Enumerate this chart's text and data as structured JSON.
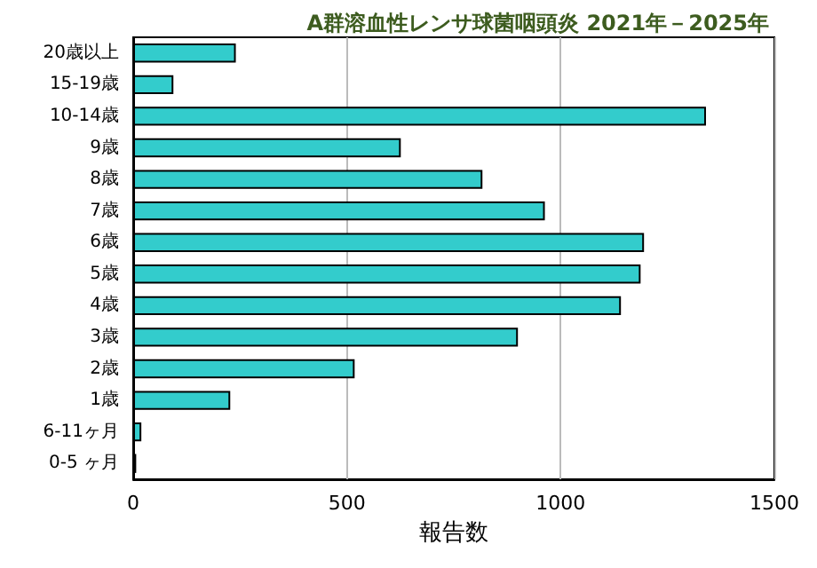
{
  "chart_data": {
    "type": "bar",
    "orientation": "horizontal",
    "title": "A群溶血性レンサ球菌咽頭炎 2021年－2025年",
    "xlabel": "報告数",
    "categories": [
      "20歳以上",
      "15-19歳",
      "10-14歳",
      "9歳",
      "8歳",
      "7歳",
      "6歳",
      "5歳",
      "4歳",
      "3歳",
      "2歳",
      "1歳",
      "6-11ヶ月",
      "0-5 ヶ月"
    ],
    "values": [
      240,
      94,
      1340,
      626,
      817,
      963,
      1195,
      1187,
      1141,
      900,
      518,
      227,
      19,
      7
    ],
    "color": "#33cccc",
    "xlim": [
      0,
      1500
    ],
    "xticks": [
      0,
      500,
      1000,
      1500
    ],
    "grid": "x"
  }
}
